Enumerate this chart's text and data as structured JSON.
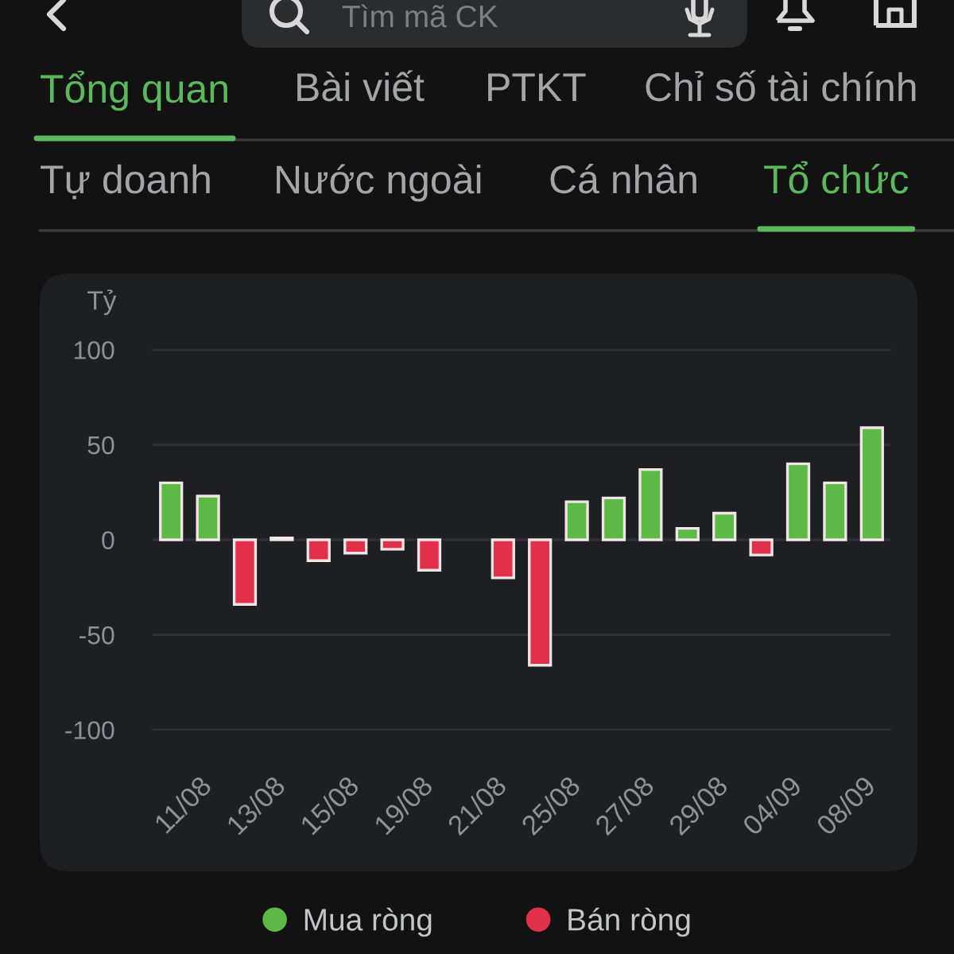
{
  "chart_data": {
    "type": "bar",
    "ylabel": "Tỷ",
    "categories": [
      null,
      "11/08",
      null,
      "13/08",
      null,
      "15/08",
      null,
      "19/08",
      null,
      "21/08",
      null,
      "25/08",
      null,
      "27/08",
      null,
      "29/08",
      null,
      "04/09",
      null,
      "08/09"
    ],
    "series": [
      {
        "name": "Mua ròng",
        "color": "#5cb946",
        "values": [
          30,
          23,
          null,
          1,
          null,
          null,
          null,
          null,
          null,
          null,
          null,
          20,
          22,
          37,
          6,
          14,
          null,
          40,
          30,
          59
        ]
      },
      {
        "name": "Bán ròng",
        "color": "#e2304a",
        "values": [
          null,
          null,
          -34,
          null,
          -11,
          -7,
          -5,
          -16,
          null,
          -20,
          -66,
          null,
          null,
          null,
          null,
          null,
          -8,
          null,
          null,
          null
        ]
      }
    ],
    "stacked": true,
    "ylim": [
      -100,
      100
    ],
    "yticks": [
      -100,
      -50,
      0,
      50,
      100
    ],
    "grid": "y",
    "legend": "bottom",
    "annotations": [
      "Tìm mã CK",
      "Tổng quan",
      "Bài viết",
      "PTKT",
      "Chỉ số tài chính",
      "Tự doanh",
      "Nước ngoài",
      "Cá nhân",
      "Tổ chức"
    ]
  }
}
